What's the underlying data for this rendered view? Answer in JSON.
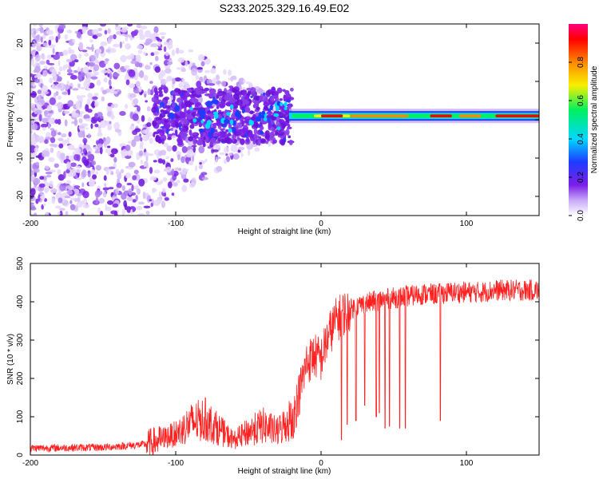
{
  "title": "S233.2025.329.16.49.E02",
  "chart_data": [
    {
      "type": "heatmap",
      "name": "spectrogram",
      "xlabel": "Height of straight line (km)",
      "ylabel": "Frequency (Hz)",
      "xlim": [
        -200,
        150
      ],
      "ylim": [
        -25,
        25
      ],
      "x_ticks": [
        -200,
        -100,
        0,
        100
      ],
      "y_ticks": [
        -20,
        -10,
        0,
        10,
        20
      ],
      "colorbar": {
        "label": "Normalized spectral amplitude",
        "range": [
          0,
          1
        ],
        "ticks": [
          "0.0",
          "0.2",
          "0.4",
          "0.6",
          "0.8"
        ],
        "colors": [
          "#ffffff",
          "#c8a8f8",
          "#7a1ee8",
          "#1e3cff",
          "#00d8ff",
          "#00f060",
          "#f8f000",
          "#ff8800",
          "#ff0000",
          "#ff0080"
        ]
      },
      "description_values": {
        "carrier_frequency_hz": 1,
        "noise_region_x": [
          -200,
          -20
        ],
        "carrier_region_x": [
          -20,
          150
        ]
      }
    },
    {
      "type": "line",
      "name": "snr",
      "xlabel": "Height of straight line (km)",
      "ylabel": "SNR (10 * v/v)",
      "xlim": [
        -200,
        150
      ],
      "ylim": [
        0,
        500
      ],
      "x_ticks": [
        -200,
        -100,
        0,
        100
      ],
      "y_ticks": [
        0,
        100,
        200,
        300,
        400,
        500
      ],
      "color": "#ff2020",
      "series": [
        {
          "name": "SNR",
          "x": [
            -200,
            -150,
            -120,
            -100,
            -90,
            -80,
            -70,
            -60,
            -50,
            -40,
            -30,
            -20,
            -15,
            -10,
            -5,
            0,
            5,
            10,
            15,
            20,
            25,
            30,
            40,
            50,
            60,
            70,
            80,
            90,
            100,
            110,
            120,
            130,
            140,
            150
          ],
          "values": [
            18,
            20,
            28,
            50,
            75,
            85,
            60,
            35,
            55,
            70,
            55,
            90,
            160,
            240,
            260,
            250,
            310,
            350,
            370,
            380,
            390,
            395,
            405,
            410,
            415,
            420,
            420,
            425,
            425,
            425,
            430,
            430,
            430,
            430
          ]
        }
      ]
    }
  ]
}
